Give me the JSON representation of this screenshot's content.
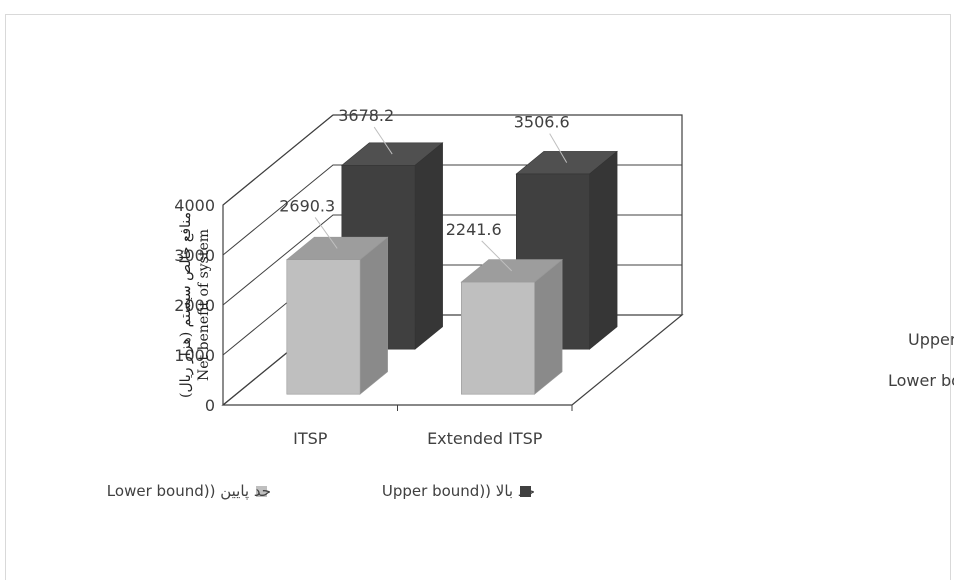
{
  "chart_data": {
    "type": "bar",
    "categories": [
      "ITSP",
      "Extended ITSP"
    ],
    "series": [
      {
        "name": "حد پایین ((Lower bound",
        "values": [
          2690.3,
          2241.6
        ],
        "color": "#bfbfbf"
      },
      {
        "name": "حد بالا ((Upper bound",
        "values": [
          3678.2,
          3506.6
        ],
        "color": "#404040"
      }
    ],
    "depth_labels": [
      "حد بالا ((Upper bound",
      "حد پایین ((Lower bound"
    ],
    "ylabel": [
      "منافع خالص سیستم (هزار ریال)",
      "Net benefit of system"
    ],
    "ylim": [
      0,
      4000
    ],
    "yticks": [
      "0",
      "1000",
      "2000",
      "3000",
      "4000"
    ],
    "data_labels": [
      "2690.3",
      "2241.6",
      "3678.2",
      "3506.6"
    ],
    "legend_position": "bottom",
    "grid": true
  }
}
